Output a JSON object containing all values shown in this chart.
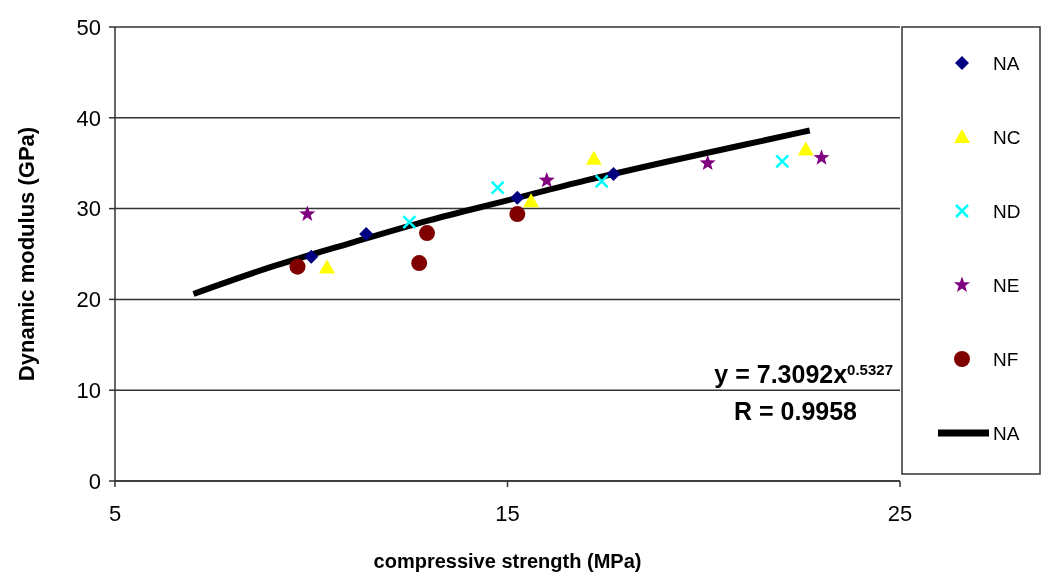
{
  "chart_data": {
    "type": "scatter",
    "xlabel": "compressive strength (MPa)",
    "ylabel": "Dynamic modulus (GPa)",
    "xlim": [
      5,
      25
    ],
    "xticks": [
      5,
      15,
      25
    ],
    "ylim": [
      0,
      50
    ],
    "yticks": [
      0,
      10,
      20,
      30,
      40,
      50
    ],
    "grid": "y",
    "legend": "right",
    "annotations": [
      "y = 7.3092x$^{0.5327}$",
      "R = 0.9958"
    ],
    "series": [
      {
        "name": "NA",
        "color": "#000080",
        "marker": "diamond",
        "x": [
          10.0,
          11.4,
          15.25,
          17.7
        ],
        "values": [
          24.7,
          27.2,
          31.2,
          33.8
        ]
      },
      {
        "name": "NC",
        "color": "#ffff00",
        "marker": "triangle",
        "x": [
          10.4,
          15.6,
          17.2,
          22.6
        ],
        "values": [
          23.5,
          30.8,
          35.5,
          36.5
        ]
      },
      {
        "name": "ND",
        "color": "#00ffff",
        "marker": "cross",
        "x": [
          12.5,
          14.75,
          17.4,
          22.0
        ],
        "values": [
          28.5,
          32.3,
          33.0,
          35.2
        ]
      },
      {
        "name": "NE",
        "color": "#800080",
        "marker": "star",
        "x": [
          9.9,
          16.0,
          20.1,
          23.0
        ],
        "values": [
          29.4,
          33.1,
          35.0,
          35.6
        ]
      },
      {
        "name": "NF",
        "color": "#800000",
        "marker": "circle",
        "x": [
          9.65,
          12.75,
          12.95,
          15.25
        ],
        "values": [
          23.6,
          24.0,
          27.3,
          29.4
        ]
      },
      {
        "name": "NA",
        "type": "line",
        "color": "#000000",
        "marker": "none",
        "x": [
          7,
          9,
          11,
          13,
          15,
          17,
          19,
          21,
          22.7
        ],
        "values": [
          20.6,
          23.6,
          26.2,
          28.7,
          30.9,
          33.1,
          35.1,
          37.0,
          38.6
        ]
      }
    ]
  }
}
